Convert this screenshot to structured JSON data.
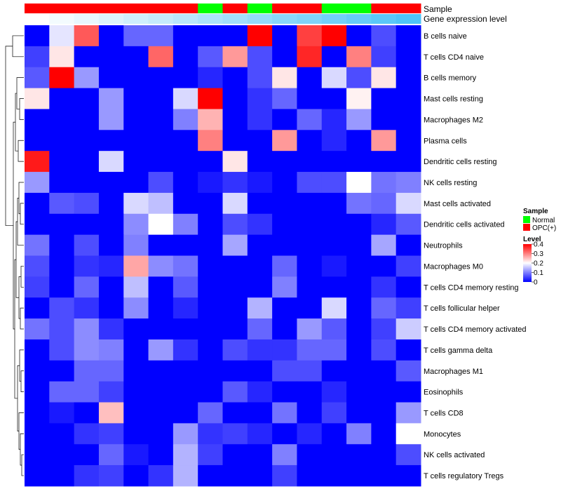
{
  "chart_data": {
    "type": "heatmap",
    "annotation_rows": [
      "Sample",
      "Gene expression level"
    ],
    "rows": [
      "B cells naive",
      "T cells CD4 naive",
      "B cells memory",
      "Mast cells resting",
      "Macrophages M2",
      "Plasma cells",
      "Dendritic cells resting",
      "NK cells resting",
      "Mast cells activated",
      "Dendritic cells activated",
      "Neutrophils",
      "Macrophages M0",
      "T cells CD4 memory resting",
      "T cells follicular helper",
      "T cells CD4 memory activated",
      "T cells gamma delta",
      "Macrophages M1",
      "Eosinophils",
      "T cells CD8",
      "Monocytes",
      "NK cells activated",
      "T cells regulatory  Tregs"
    ],
    "sample_groups": [
      "OPC(+)",
      "OPC(+)",
      "OPC(+)",
      "OPC(+)",
      "OPC(+)",
      "OPC(+)",
      "OPC(+)",
      "Normal",
      "OPC(+)",
      "Normal",
      "OPC(+)",
      "OPC(+)",
      "Normal",
      "Normal",
      "OPC(+)",
      "OPC(+)"
    ],
    "expression_level": [
      0.0,
      0.07,
      0.13,
      0.2,
      0.27,
      0.33,
      0.4,
      0.47,
      0.53,
      0.6,
      0.67,
      0.73,
      0.8,
      0.87,
      0.93,
      1.0
    ],
    "values": [
      [
        0,
        0.18,
        0.33,
        0,
        0.08,
        0.08,
        0,
        0,
        0,
        0.4,
        0,
        0.35,
        0.4,
        0,
        0.06,
        0
      ],
      [
        0.05,
        0.22,
        0,
        0,
        0,
        0.32,
        0,
        0.07,
        0.28,
        0.06,
        0,
        0.37,
        0,
        0.3,
        0.05,
        0
      ],
      [
        0.07,
        0.4,
        0.12,
        0,
        0,
        0,
        0,
        0.03,
        0,
        0.06,
        0.22,
        0,
        0.17,
        0.06,
        0.22,
        0
      ],
      [
        0.22,
        0,
        0,
        0.12,
        0,
        0,
        0.17,
        0.4,
        0,
        0.04,
        0.08,
        0,
        0,
        0.21,
        0,
        0
      ],
      [
        0,
        0,
        0,
        0.12,
        0,
        0,
        0.1,
        0.26,
        0,
        0.04,
        0,
        0.08,
        0.03,
        0.12,
        0,
        0
      ],
      [
        0,
        0,
        0,
        0,
        0,
        0,
        0,
        0.3,
        0,
        0,
        0.28,
        0,
        0.03,
        0,
        0.28,
        0
      ],
      [
        0.38,
        0,
        0,
        0.17,
        0,
        0,
        0,
        0,
        0.22,
        0,
        0,
        0,
        0,
        0,
        0,
        0
      ],
      [
        0.12,
        0,
        0,
        0,
        0,
        0.06,
        0,
        0.02,
        0.04,
        0.02,
        0,
        0.06,
        0.06,
        0.2,
        0.09,
        0.1
      ],
      [
        0,
        0.07,
        0.06,
        0,
        0.17,
        0.15,
        0,
        0,
        0.17,
        0,
        0,
        0,
        0,
        0.09,
        0.08,
        0.17
      ],
      [
        0,
        0,
        0,
        0,
        0.11,
        0.2,
        0.1,
        0,
        0.06,
        0.04,
        0,
        0,
        0,
        0,
        0.03,
        0.07
      ],
      [
        0.09,
        0,
        0.06,
        0,
        0.1,
        0,
        0,
        0,
        0.13,
        0,
        0,
        0,
        0,
        0,
        0.13,
        0
      ],
      [
        0.06,
        0,
        0.04,
        0.03,
        0.27,
        0.11,
        0.09,
        0,
        0,
        0,
        0.08,
        0,
        0.02,
        0,
        0,
        0.05
      ],
      [
        0.05,
        0,
        0.08,
        0,
        0.15,
        0,
        0.07,
        0,
        0,
        0,
        0.1,
        0,
        0,
        0,
        0.04,
        0
      ],
      [
        0,
        0.06,
        0.04,
        0,
        0.11,
        0,
        0.03,
        0,
        0,
        0.14,
        0,
        0,
        0.17,
        0,
        0.08,
        0.05
      ],
      [
        0.09,
        0.06,
        0.11,
        0.04,
        0,
        0,
        0,
        0,
        0,
        0.08,
        0,
        0.12,
        0.07,
        0,
        0.05,
        0.16
      ],
      [
        0,
        0.06,
        0.11,
        0.1,
        0,
        0.12,
        0.04,
        0,
        0.06,
        0.04,
        0.04,
        0.08,
        0.08,
        0,
        0.06,
        0
      ],
      [
        0,
        0,
        0.08,
        0.08,
        0,
        0,
        0,
        0,
        0,
        0,
        0.06,
        0.06,
        0,
        0,
        0,
        0.07
      ],
      [
        0,
        0.08,
        0.08,
        0.05,
        0,
        0,
        0,
        0,
        0.07,
        0.03,
        0,
        0,
        0.03,
        0,
        0,
        0
      ],
      [
        0,
        0.02,
        0,
        0.25,
        0,
        0,
        0,
        0.08,
        0,
        0,
        0.09,
        0,
        0.05,
        0,
        0,
        0.12
      ],
      [
        0,
        0,
        0.04,
        0.05,
        0,
        0,
        0.12,
        0.04,
        0.05,
        0.03,
        0,
        0.03,
        0,
        0.1,
        0,
        0.2
      ],
      [
        0,
        0,
        0,
        0.08,
        0.02,
        0,
        0.14,
        0.05,
        0,
        0,
        0.1,
        0,
        0,
        0,
        0,
        0.06
      ],
      [
        0,
        0,
        0.04,
        0.05,
        0,
        0.04,
        0.14,
        0,
        0,
        0,
        0.05,
        0,
        0,
        0,
        0,
        0
      ]
    ],
    "legend": {
      "sample_title": "Sample",
      "sample_entries": [
        {
          "label": "Normal",
          "color": "#00ff00"
        },
        {
          "label": "OPC(+)",
          "color": "#ff0000"
        }
      ],
      "level_title": "Level",
      "level_ticks": [
        "0.4",
        "0.3",
        "0.2",
        "0.1",
        "0"
      ]
    },
    "colors": {
      "low": "#0000ff",
      "mid": "#ffffff",
      "high": "#ff0000",
      "level_low": "#ffffff",
      "level_high": "#4fc3f7"
    },
    "scale_range": [
      0,
      0.4
    ]
  }
}
